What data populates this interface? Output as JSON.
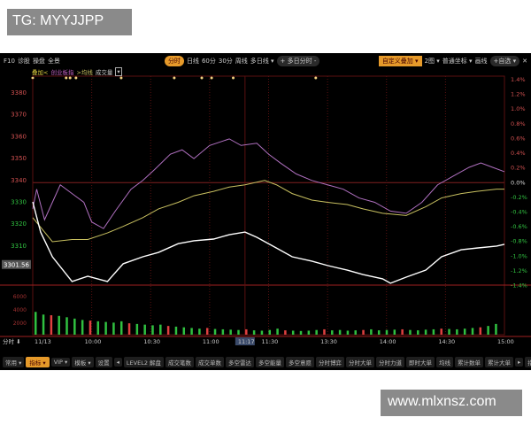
{
  "watermarks": {
    "top": "TG: MYYJJPP",
    "bottom": "www.mlxnsz.com"
  },
  "toolbar": {
    "left": [
      "F10",
      "诊股",
      "操盘",
      "全景"
    ],
    "periods": [
      "分时",
      "日线",
      "60分",
      "30分",
      "周线",
      "多日线 ▾"
    ],
    "active_period": "分时",
    "multi_day": "+ 多日分时 -",
    "right": [
      "自定义叠加 ▾",
      "2图 ▾",
      "普通坐标 ▾",
      "画线",
      "+自选 ▾",
      "✕"
    ]
  },
  "overlay": {
    "label": "叠加<",
    "index": "创业板指",
    "avg": ">均线",
    "volume": "成交量",
    "menu": "▾"
  },
  "bottom_bar": {
    "tabs": [
      "常用 ▾",
      "指标 ▾",
      "VIP ▾",
      "模板 ▾",
      "设置"
    ],
    "active_tab": "指标 ▾",
    "indicators": [
      "◂",
      "LEVEL2 解盘",
      "成交笔数",
      "成交单数",
      "多空雷达",
      "多空能量",
      "多空意愿",
      "分时博弈",
      "分时大单",
      "分时力道",
      "即时大单",
      "均线",
      "累计数单",
      "累计大单",
      "▸"
    ],
    "share": "指标分享"
  },
  "colors": {
    "price": "#ffffff",
    "avg": "#c8c060",
    "index": "#b070c0",
    "up": "#e04040",
    "down": "#30c040",
    "grid": "#5a1010"
  },
  "chart_data": {
    "type": "line",
    "x_unit": "minutes since 09:30 (trading time)",
    "xlim": [
      0,
      240
    ],
    "ylim": [
      3290,
      3385
    ],
    "y_ticks": [
      3380,
      3370,
      3360,
      3350,
      3340,
      3330,
      3320,
      3310
    ],
    "current_price_label": "3301.56",
    "base_price": 3339,
    "pct_ticks": [
      "1.4%",
      "1.2%",
      "1.0%",
      "0.8%",
      "0.6%",
      "0.4%",
      "0.2%",
      "0.0%",
      "-0.2%",
      "-0.4%",
      "-0.6%",
      "-0.8%",
      "-1.0%",
      "-1.2%",
      "-1.4%"
    ],
    "x_ticks": [
      {
        "t": 0,
        "label": "11/13"
      },
      {
        "t": 30,
        "label": "10:00"
      },
      {
        "t": 60,
        "label": "10:30"
      },
      {
        "t": 90,
        "label": "11:00"
      },
      {
        "t": 108,
        "label": "11:17"
      },
      {
        "t": 120,
        "label": "11:30"
      },
      {
        "t": 150,
        "label": "13:30"
      },
      {
        "t": 180,
        "label": "14:00"
      },
      {
        "t": 210,
        "label": "14:30"
      },
      {
        "t": 240,
        "label": "15:00"
      }
    ],
    "x_left_label": "分时 ⬇",
    "vol_ticks": [
      "6000",
      "4000",
      "2000"
    ],
    "series": [
      {
        "key": "index",
        "color": "#b070c0",
        "points": [
          [
            0,
            3327
          ],
          [
            2,
            3336
          ],
          [
            6,
            3322
          ],
          [
            10,
            3330
          ],
          [
            14,
            3338
          ],
          [
            20,
            3334
          ],
          [
            26,
            3330
          ],
          [
            30,
            3321
          ],
          [
            36,
            3318
          ],
          [
            42,
            3326
          ],
          [
            50,
            3336
          ],
          [
            56,
            3340
          ],
          [
            62,
            3345
          ],
          [
            70,
            3352
          ],
          [
            76,
            3354
          ],
          [
            82,
            3350
          ],
          [
            90,
            3356
          ],
          [
            100,
            3359
          ],
          [
            106,
            3356
          ],
          [
            114,
            3357
          ],
          [
            120,
            3352
          ],
          [
            126,
            3348
          ],
          [
            134,
            3343
          ],
          [
            142,
            3340
          ],
          [
            150,
            3338
          ],
          [
            158,
            3336
          ],
          [
            166,
            3332
          ],
          [
            174,
            3330
          ],
          [
            182,
            3326
          ],
          [
            190,
            3325
          ],
          [
            198,
            3330
          ],
          [
            206,
            3338
          ],
          [
            214,
            3342
          ],
          [
            222,
            3346
          ],
          [
            228,
            3348
          ],
          [
            234,
            3346
          ],
          [
            240,
            3344
          ]
        ]
      },
      {
        "key": "avg",
        "color": "#c8c060",
        "points": [
          [
            0,
            3323
          ],
          [
            10,
            3312
          ],
          [
            20,
            3313
          ],
          [
            28,
            3313
          ],
          [
            38,
            3316
          ],
          [
            46,
            3319
          ],
          [
            56,
            3323
          ],
          [
            64,
            3327
          ],
          [
            74,
            3330
          ],
          [
            82,
            3333
          ],
          [
            92,
            3335
          ],
          [
            100,
            3337
          ],
          [
            108,
            3338
          ],
          [
            118,
            3340
          ],
          [
            124,
            3338
          ],
          [
            132,
            3334
          ],
          [
            142,
            3331
          ],
          [
            150,
            3330
          ],
          [
            160,
            3329
          ],
          [
            168,
            3327
          ],
          [
            178,
            3325
          ],
          [
            190,
            3324
          ],
          [
            200,
            3328
          ],
          [
            208,
            3332
          ],
          [
            218,
            3334
          ],
          [
            226,
            3335
          ],
          [
            236,
            3336
          ],
          [
            240,
            3336
          ]
        ]
      },
      {
        "key": "price",
        "color": "#ffffff",
        "points": [
          [
            0,
            3330.2
          ],
          [
            4,
            3316.4
          ],
          [
            10,
            3305.1
          ],
          [
            20,
            3293.8
          ],
          [
            28,
            3296.2
          ],
          [
            38,
            3293.8
          ],
          [
            46,
            3301.9
          ],
          [
            56,
            3305.1
          ],
          [
            64,
            3307.1
          ],
          [
            74,
            3311.1
          ],
          [
            82,
            3312.4
          ],
          [
            92,
            3313.2
          ],
          [
            100,
            3315.2
          ],
          [
            108,
            3316.4
          ],
          [
            114,
            3314
          ],
          [
            124,
            3309.1
          ],
          [
            132,
            3305.1
          ],
          [
            142,
            3303.1
          ],
          [
            150,
            3301.1
          ],
          [
            160,
            3299
          ],
          [
            168,
            3297
          ],
          [
            178,
            3295
          ],
          [
            182,
            3293
          ],
          [
            190,
            3295.8
          ],
          [
            200,
            3299
          ],
          [
            208,
            3305.1
          ],
          [
            218,
            3308.3
          ],
          [
            226,
            3309.1
          ],
          [
            236,
            3310
          ],
          [
            240,
            3310.8
          ]
        ]
      }
    ],
    "volume": [
      3400,
      3000,
      2900,
      2800,
      2600,
      2400,
      2200,
      2100,
      2000,
      1900,
      1800,
      2000,
      1700,
      1600,
      1500,
      1400,
      1500,
      1300,
      1200,
      1100,
      1000,
      900,
      1000,
      850,
      800,
      750,
      700,
      800,
      650,
      600,
      700,
      900,
      650,
      600,
      550,
      600,
      700,
      800,
      650,
      700,
      600,
      650,
      700,
      800,
      650,
      700,
      750,
      800,
      700,
      650,
      750,
      800,
      900,
      850,
      800,
      900,
      1000,
      1100,
      1300,
      1600
    ],
    "event_markers": [
      0,
      17,
      19,
      22,
      45,
      72,
      86,
      91,
      102,
      144
    ]
  }
}
